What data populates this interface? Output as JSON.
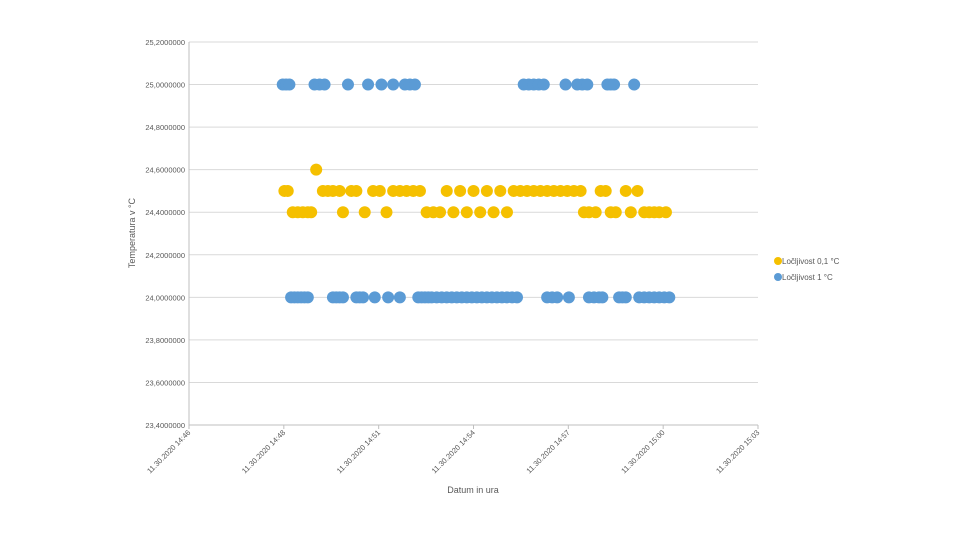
{
  "chart_data": {
    "type": "scatter",
    "title": "",
    "xlabel": "Datum in ura",
    "ylabel": "Temperatura v °C",
    "xlim_minutes": [
      0,
      17
    ],
    "ylim": [
      23.4,
      25.2
    ],
    "y_ticks": [
      {
        "value": 23.4,
        "label": "23,4000000"
      },
      {
        "value": 23.6,
        "label": "23,6000000"
      },
      {
        "value": 23.8,
        "label": "23,8000000"
      },
      {
        "value": 24.0,
        "label": "24,0000000"
      },
      {
        "value": 24.2,
        "label": "24,2000000"
      },
      {
        "value": 24.4,
        "label": "24,4000000"
      },
      {
        "value": 24.6,
        "label": "24,6000000"
      },
      {
        "value": 24.8,
        "label": "24,8000000"
      },
      {
        "value": 25.0,
        "label": "25,0000000"
      },
      {
        "value": 25.2,
        "label": "25,2000000"
      }
    ],
    "x_ticks": [
      {
        "value": 0,
        "label": "11.30.2020 14:46"
      },
      {
        "value": 2.833,
        "label": "11.30.2020 14:48"
      },
      {
        "value": 5.667,
        "label": "11.30.2020 14:51"
      },
      {
        "value": 8.5,
        "label": "11.30.2020 14:54"
      },
      {
        "value": 11.333,
        "label": "11.30.2020 14:57"
      },
      {
        "value": 14.167,
        "label": "11.30.2020 15:00"
      },
      {
        "value": 17,
        "label": "11.30.2020 15:03"
      }
    ],
    "grid": true,
    "legend_position": "right",
    "series": [
      {
        "name": "Ločljivost 0,1 °C",
        "color": "#F5C000",
        "points": [
          {
            "x": 2.85,
            "y": 24.5
          },
          {
            "x": 2.95,
            "y": 24.5
          },
          {
            "x": 3.1,
            "y": 24.4
          },
          {
            "x": 3.25,
            "y": 24.4
          },
          {
            "x": 3.4,
            "y": 24.4
          },
          {
            "x": 3.55,
            "y": 24.4
          },
          {
            "x": 3.65,
            "y": 24.4
          },
          {
            "x": 3.8,
            "y": 24.6
          },
          {
            "x": 4.0,
            "y": 24.5
          },
          {
            "x": 4.15,
            "y": 24.5
          },
          {
            "x": 4.3,
            "y": 24.5
          },
          {
            "x": 4.5,
            "y": 24.5
          },
          {
            "x": 4.6,
            "y": 24.4
          },
          {
            "x": 4.85,
            "y": 24.5
          },
          {
            "x": 5.0,
            "y": 24.5
          },
          {
            "x": 5.25,
            "y": 24.4
          },
          {
            "x": 5.5,
            "y": 24.5
          },
          {
            "x": 5.7,
            "y": 24.5
          },
          {
            "x": 5.9,
            "y": 24.4
          },
          {
            "x": 6.1,
            "y": 24.5
          },
          {
            "x": 6.3,
            "y": 24.5
          },
          {
            "x": 6.5,
            "y": 24.5
          },
          {
            "x": 6.7,
            "y": 24.5
          },
          {
            "x": 6.9,
            "y": 24.5
          },
          {
            "x": 7.1,
            "y": 24.4
          },
          {
            "x": 7.3,
            "y": 24.4
          },
          {
            "x": 7.5,
            "y": 24.4
          },
          {
            "x": 7.7,
            "y": 24.5
          },
          {
            "x": 7.9,
            "y": 24.4
          },
          {
            "x": 8.1,
            "y": 24.5
          },
          {
            "x": 8.3,
            "y": 24.4
          },
          {
            "x": 8.5,
            "y": 24.5
          },
          {
            "x": 8.7,
            "y": 24.4
          },
          {
            "x": 8.9,
            "y": 24.5
          },
          {
            "x": 9.1,
            "y": 24.4
          },
          {
            "x": 9.3,
            "y": 24.5
          },
          {
            "x": 9.5,
            "y": 24.4
          },
          {
            "x": 9.7,
            "y": 24.5
          },
          {
            "x": 9.9,
            "y": 24.5
          },
          {
            "x": 10.1,
            "y": 24.5
          },
          {
            "x": 10.3,
            "y": 24.5
          },
          {
            "x": 10.5,
            "y": 24.5
          },
          {
            "x": 10.7,
            "y": 24.5
          },
          {
            "x": 10.9,
            "y": 24.5
          },
          {
            "x": 11.1,
            "y": 24.5
          },
          {
            "x": 11.3,
            "y": 24.5
          },
          {
            "x": 11.5,
            "y": 24.5
          },
          {
            "x": 11.7,
            "y": 24.5
          },
          {
            "x": 11.8,
            "y": 24.4
          },
          {
            "x": 11.95,
            "y": 24.4
          },
          {
            "x": 12.15,
            "y": 24.4
          },
          {
            "x": 12.3,
            "y": 24.5
          },
          {
            "x": 12.45,
            "y": 24.5
          },
          {
            "x": 12.6,
            "y": 24.4
          },
          {
            "x": 12.75,
            "y": 24.4
          },
          {
            "x": 13.05,
            "y": 24.5
          },
          {
            "x": 13.2,
            "y": 24.4
          },
          {
            "x": 13.4,
            "y": 24.5
          },
          {
            "x": 13.6,
            "y": 24.4
          },
          {
            "x": 13.75,
            "y": 24.4
          },
          {
            "x": 13.9,
            "y": 24.4
          },
          {
            "x": 14.05,
            "y": 24.4
          },
          {
            "x": 14.25,
            "y": 24.4
          }
        ]
      },
      {
        "name": "Ločljivost 1 °C",
        "color": "#5B9BD5",
        "points": [
          {
            "x": 2.8,
            "y": 25.0
          },
          {
            "x": 2.9,
            "y": 25.0
          },
          {
            "x": 3.0,
            "y": 25.0
          },
          {
            "x": 3.05,
            "y": 24.0
          },
          {
            "x": 3.15,
            "y": 24.0
          },
          {
            "x": 3.25,
            "y": 24.0
          },
          {
            "x": 3.35,
            "y": 24.0
          },
          {
            "x": 3.45,
            "y": 24.0
          },
          {
            "x": 3.55,
            "y": 24.0
          },
          {
            "x": 3.75,
            "y": 25.0
          },
          {
            "x": 3.9,
            "y": 25.0
          },
          {
            "x": 4.05,
            "y": 25.0
          },
          {
            "x": 4.3,
            "y": 24.0
          },
          {
            "x": 4.4,
            "y": 24.0
          },
          {
            "x": 4.5,
            "y": 24.0
          },
          {
            "x": 4.6,
            "y": 24.0
          },
          {
            "x": 4.75,
            "y": 25.0
          },
          {
            "x": 5.0,
            "y": 24.0
          },
          {
            "x": 5.1,
            "y": 24.0
          },
          {
            "x": 5.2,
            "y": 24.0
          },
          {
            "x": 5.35,
            "y": 25.0
          },
          {
            "x": 5.55,
            "y": 24.0
          },
          {
            "x": 5.75,
            "y": 25.0
          },
          {
            "x": 5.95,
            "y": 24.0
          },
          {
            "x": 6.1,
            "y": 25.0
          },
          {
            "x": 6.3,
            "y": 24.0
          },
          {
            "x": 6.45,
            "y": 25.0
          },
          {
            "x": 6.6,
            "y": 25.0
          },
          {
            "x": 6.75,
            "y": 25.0
          },
          {
            "x": 6.85,
            "y": 24.0
          },
          {
            "x": 6.95,
            "y": 24.0
          },
          {
            "x": 7.05,
            "y": 24.0
          },
          {
            "x": 7.15,
            "y": 24.0
          },
          {
            "x": 7.25,
            "y": 24.0
          },
          {
            "x": 7.4,
            "y": 24.0
          },
          {
            "x": 7.55,
            "y": 24.0
          },
          {
            "x": 7.7,
            "y": 24.0
          },
          {
            "x": 7.85,
            "y": 24.0
          },
          {
            "x": 8.0,
            "y": 24.0
          },
          {
            "x": 8.15,
            "y": 24.0
          },
          {
            "x": 8.3,
            "y": 24.0
          },
          {
            "x": 8.45,
            "y": 24.0
          },
          {
            "x": 8.6,
            "y": 24.0
          },
          {
            "x": 8.75,
            "y": 24.0
          },
          {
            "x": 8.9,
            "y": 24.0
          },
          {
            "x": 9.05,
            "y": 24.0
          },
          {
            "x": 9.2,
            "y": 24.0
          },
          {
            "x": 9.35,
            "y": 24.0
          },
          {
            "x": 9.5,
            "y": 24.0
          },
          {
            "x": 9.65,
            "y": 24.0
          },
          {
            "x": 9.8,
            "y": 24.0
          },
          {
            "x": 10.0,
            "y": 25.0
          },
          {
            "x": 10.15,
            "y": 25.0
          },
          {
            "x": 10.3,
            "y": 25.0
          },
          {
            "x": 10.45,
            "y": 25.0
          },
          {
            "x": 10.6,
            "y": 25.0
          },
          {
            "x": 10.7,
            "y": 24.0
          },
          {
            "x": 10.85,
            "y": 24.0
          },
          {
            "x": 11.0,
            "y": 24.0
          },
          {
            "x": 11.25,
            "y": 25.0
          },
          {
            "x": 11.35,
            "y": 24.0
          },
          {
            "x": 11.6,
            "y": 25.0
          },
          {
            "x": 11.75,
            "y": 25.0
          },
          {
            "x": 11.9,
            "y": 25.0
          },
          {
            "x": 11.95,
            "y": 24.0
          },
          {
            "x": 12.1,
            "y": 24.0
          },
          {
            "x": 12.25,
            "y": 24.0
          },
          {
            "x": 12.35,
            "y": 24.0
          },
          {
            "x": 12.5,
            "y": 25.0
          },
          {
            "x": 12.6,
            "y": 25.0
          },
          {
            "x": 12.7,
            "y": 25.0
          },
          {
            "x": 12.85,
            "y": 24.0
          },
          {
            "x": 12.95,
            "y": 24.0
          },
          {
            "x": 13.05,
            "y": 24.0
          },
          {
            "x": 13.3,
            "y": 25.0
          },
          {
            "x": 13.45,
            "y": 24.0
          },
          {
            "x": 13.6,
            "y": 24.0
          },
          {
            "x": 13.75,
            "y": 24.0
          },
          {
            "x": 13.9,
            "y": 24.0
          },
          {
            "x": 14.05,
            "y": 24.0
          },
          {
            "x": 14.2,
            "y": 24.0
          },
          {
            "x": 14.35,
            "y": 24.0
          }
        ]
      }
    ]
  }
}
